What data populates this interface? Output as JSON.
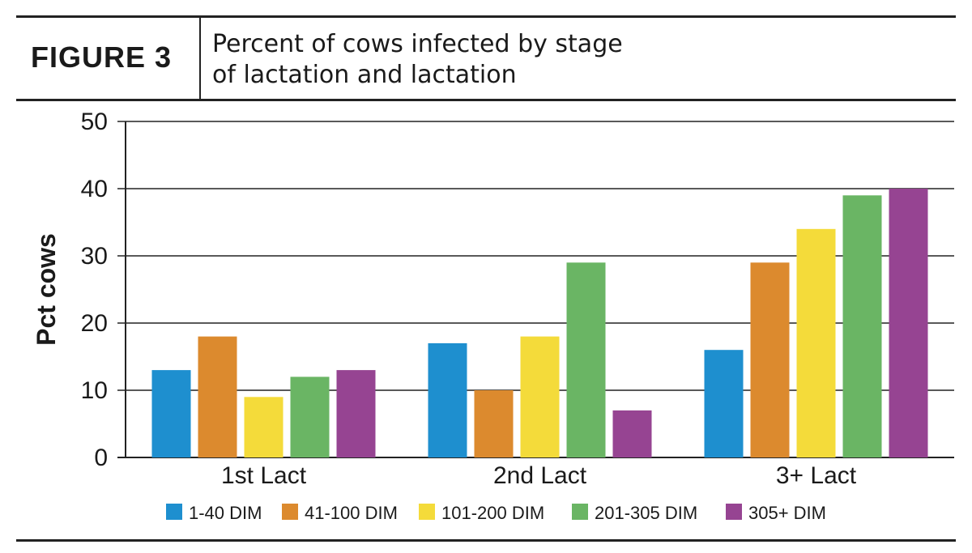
{
  "figure": {
    "label": "FIGURE 3",
    "title_line1": "Percent of cows infected by stage",
    "title_line2": "of lactation and lactation"
  },
  "chart_data": {
    "type": "bar",
    "categories": [
      "1st Lact",
      "2nd Lact",
      "3+ Lact"
    ],
    "ylabel": "Pct cows",
    "xlabel": "",
    "ylim": [
      0,
      50
    ],
    "yticks": [
      0,
      10,
      20,
      30,
      40,
      50
    ],
    "grid": true,
    "legend_position": "bottom",
    "series": [
      {
        "name": "1-40 DIM",
        "color": "#1e8fcf",
        "values": [
          13,
          17,
          16
        ]
      },
      {
        "name": "41-100 DIM",
        "color": "#dc8a2e",
        "values": [
          18,
          10,
          29
        ]
      },
      {
        "name": "101-200 DIM",
        "color": "#f4db3a",
        "values": [
          9,
          18,
          34
        ]
      },
      {
        "name": "201-305 DIM",
        "color": "#6ab564",
        "values": [
          12,
          29,
          39
        ]
      },
      {
        "name": "305+ DIM",
        "color": "#964492",
        "values": [
          13,
          7,
          40
        ]
      }
    ]
  }
}
